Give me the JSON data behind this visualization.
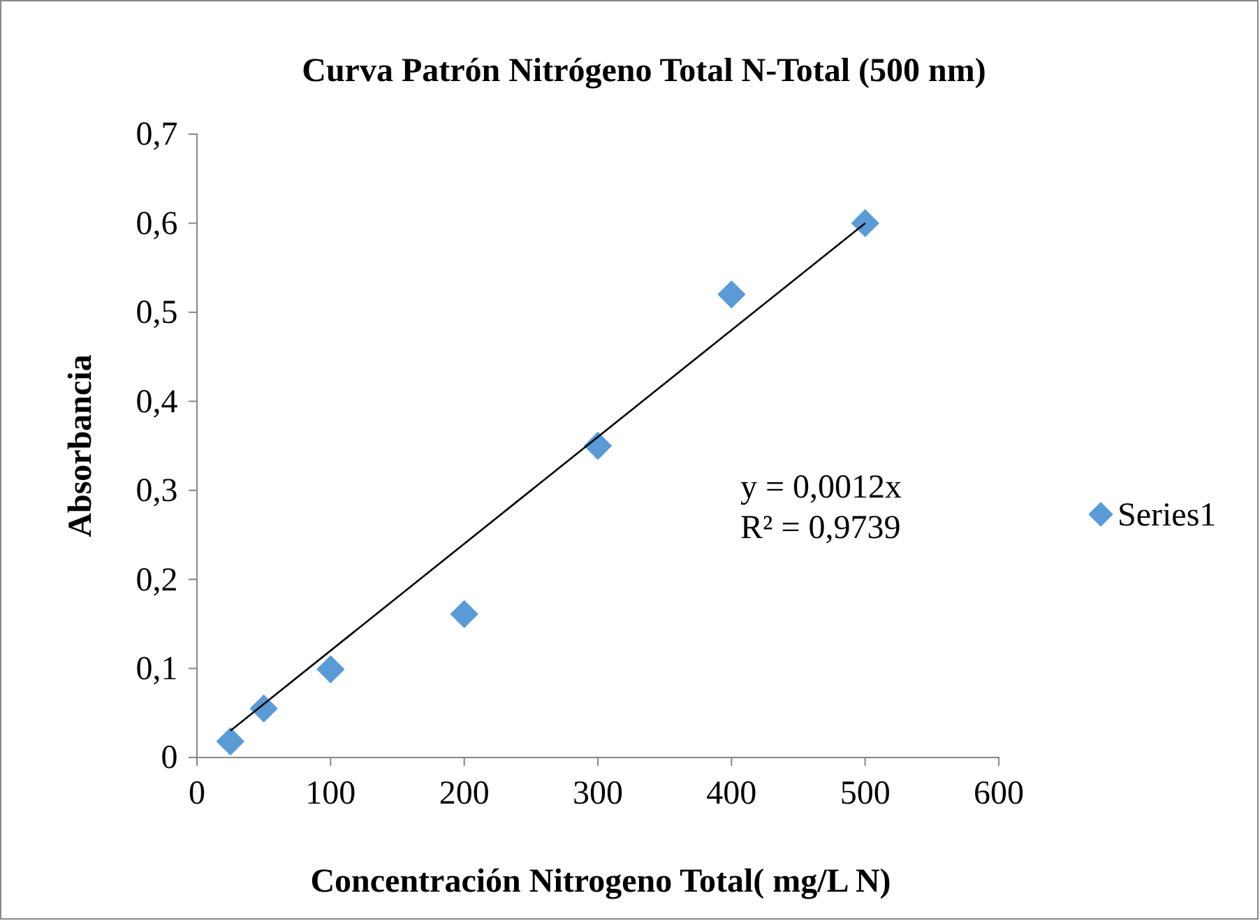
{
  "chart_data": {
    "type": "scatter",
    "title": "Curva Patrón Nitrógeno Total N-Total (500 nm)",
    "xlabel": "Concentración Nitrogeno Total( mg/L N)",
    "ylabel": "Absorbancia",
    "series": [
      {
        "name": "Series1",
        "marker": "diamond",
        "color": "#5b9bd5",
        "x": [
          25,
          50,
          100,
          200,
          300,
          400,
          500
        ],
        "values": [
          0.018,
          0.055,
          0.099,
          0.161,
          0.35,
          0.52,
          0.6
        ]
      },
      {
        "type": "line",
        "marker": "none",
        "color": "#000000",
        "x": [
          25,
          500
        ],
        "values": [
          0.03,
          0.6
        ]
      }
    ],
    "annotations": [
      "y = 0,0012x",
      "R² = 0,9739"
    ],
    "xlim": [
      0,
      600
    ],
    "xticks": [
      0,
      100,
      200,
      300,
      400,
      500,
      600
    ],
    "ylim": [
      0,
      0.7
    ],
    "yticks": [
      0,
      {
        "value": 0.1,
        "label": "0,1"
      },
      {
        "value": 0.2,
        "label": "0,2"
      },
      {
        "value": 0.3,
        "label": "0,3"
      },
      {
        "value": 0.4,
        "label": "0,4"
      },
      {
        "value": 0.5,
        "label": "0,5"
      },
      {
        "value": 0.6,
        "label": "0,6"
      },
      {
        "value": 0.7,
        "label": "0,7"
      }
    ],
    "line_style": "solid",
    "legend": "right",
    "grid": false
  }
}
